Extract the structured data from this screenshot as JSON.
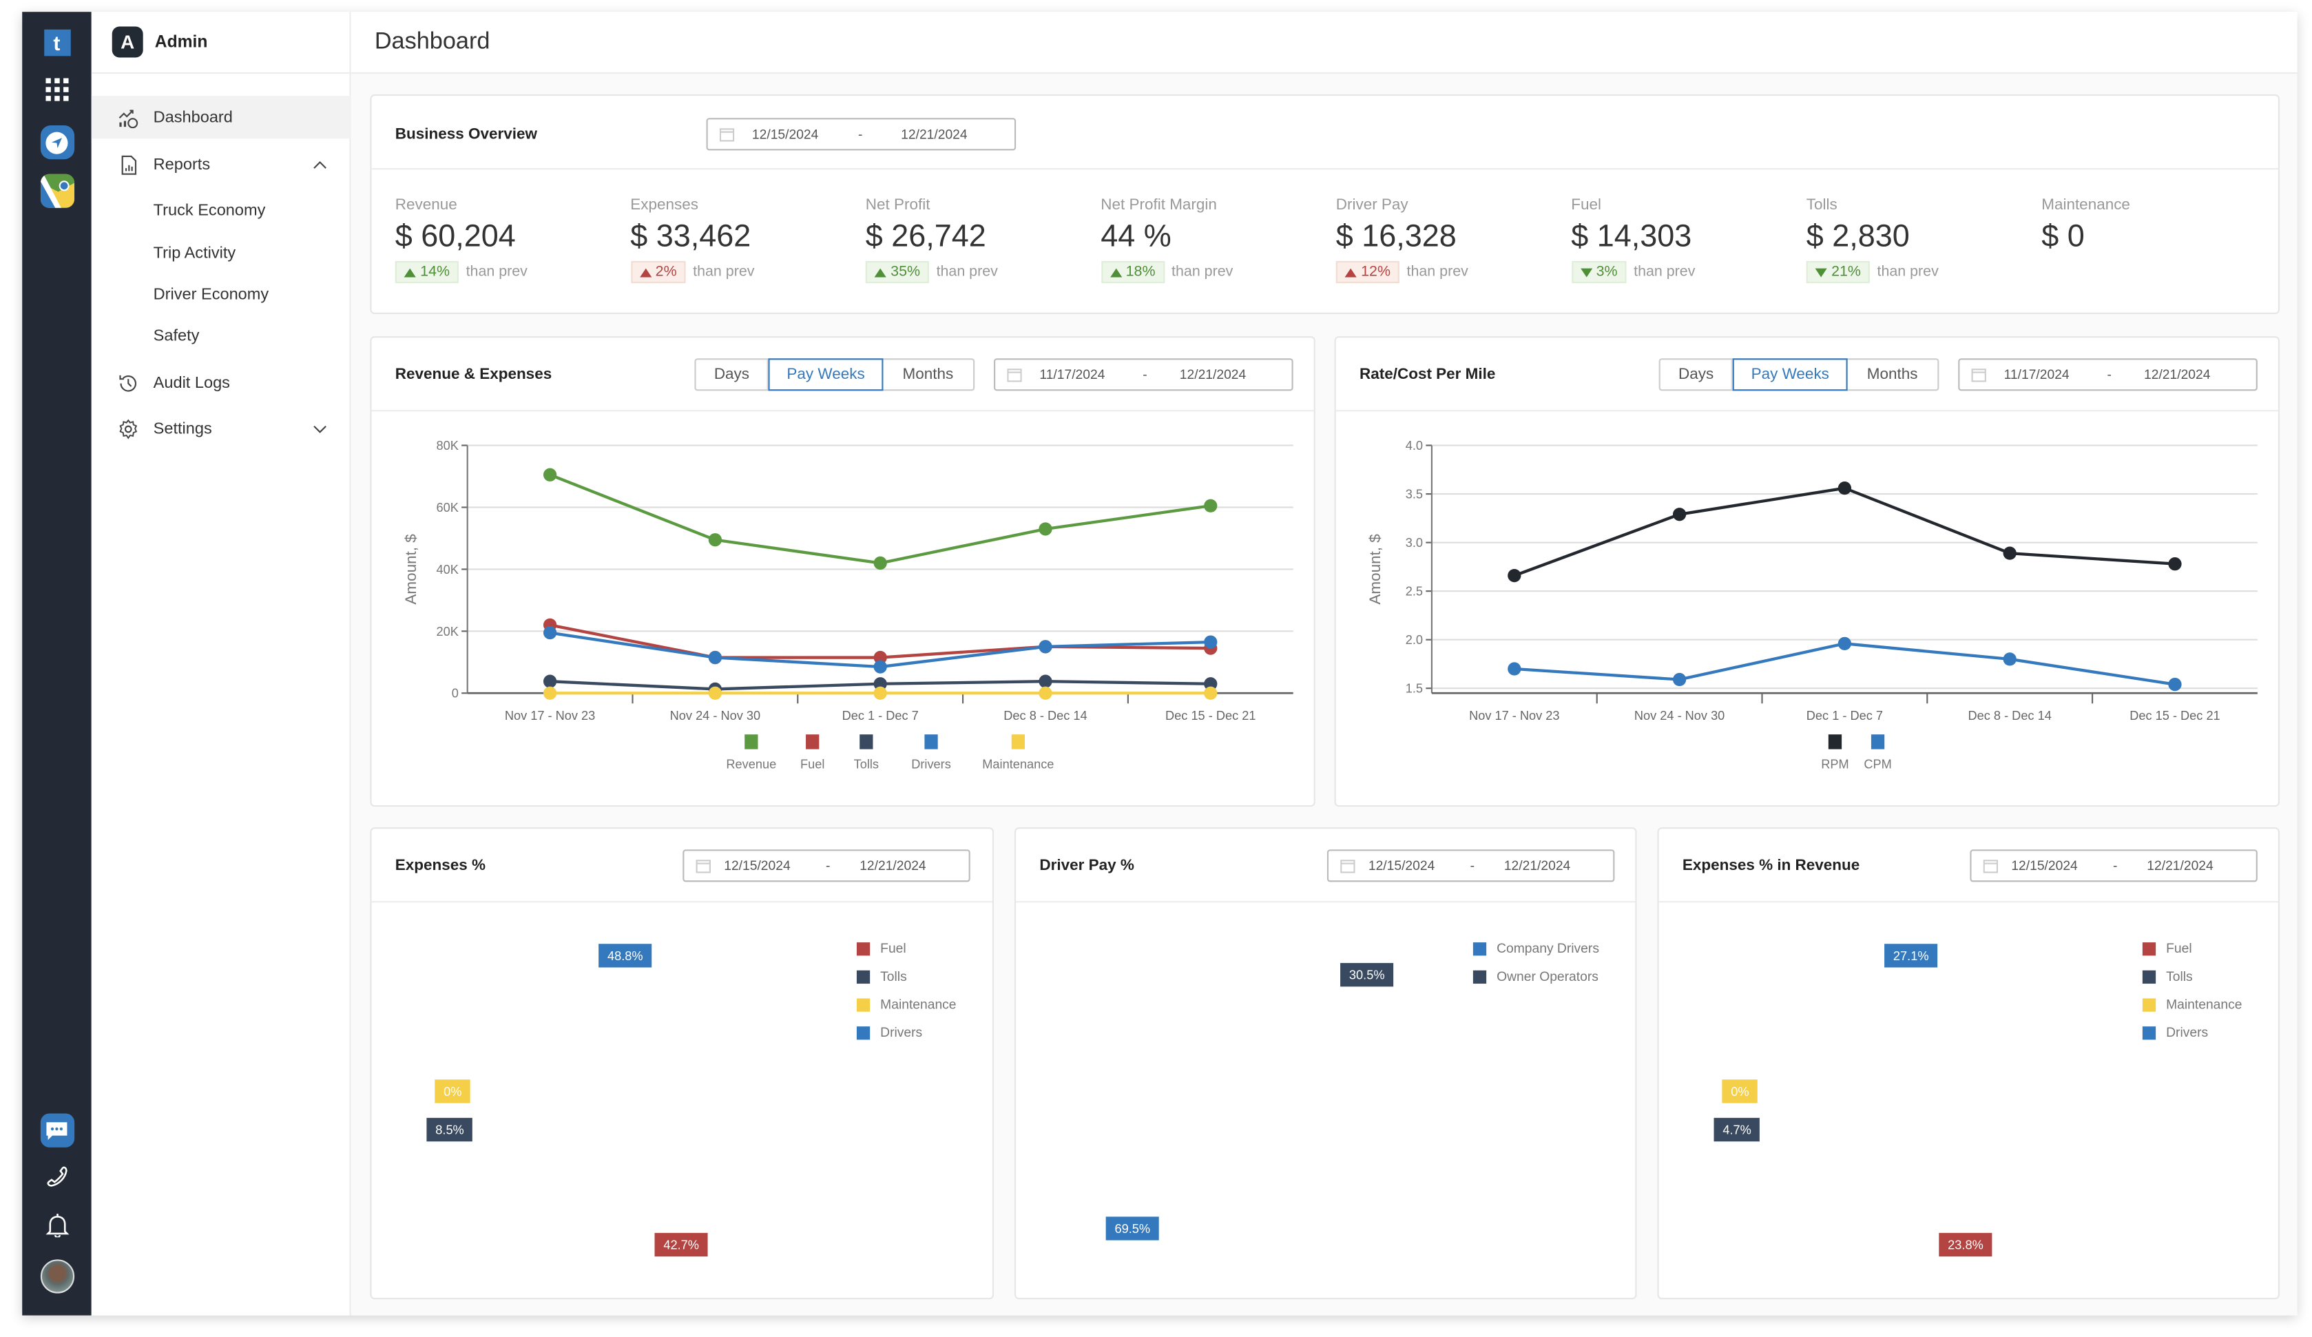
{
  "sidebar": {
    "app_name": "Admin",
    "items": [
      {
        "label": "Dashboard",
        "icon": "chart-dollar-icon",
        "active": true
      },
      {
        "label": "Reports",
        "icon": "report-icon",
        "expanded": true
      },
      {
        "label": "Truck Economy"
      },
      {
        "label": "Trip Activity"
      },
      {
        "label": "Driver Economy"
      },
      {
        "label": "Safety"
      },
      {
        "label": "Audit Logs",
        "icon": "history-icon"
      },
      {
        "label": "Settings",
        "icon": "gear-icon",
        "expanded": false
      }
    ]
  },
  "rail": {
    "icons": [
      "t-logo-icon",
      "apps-grid-icon",
      "navigation-icon",
      "maps-icon",
      "chat-icon",
      "phone-icon",
      "bell-icon",
      "avatar"
    ]
  },
  "header": {
    "title": "Dashboard"
  },
  "overview": {
    "title": "Business Overview",
    "date_from": "12/15/2024",
    "date_sep": "-",
    "date_to": "12/21/2024",
    "than_prev": "than prev",
    "metrics": [
      {
        "label": "Revenue",
        "value": "$ 60,204",
        "change": "14%",
        "direction": "up",
        "status": "good"
      },
      {
        "label": "Expenses",
        "value": "$ 33,462",
        "change": "2%",
        "direction": "up",
        "status": "bad"
      },
      {
        "label": "Net Profit",
        "value": "$ 26,742",
        "change": "35%",
        "direction": "up",
        "status": "good"
      },
      {
        "label": "Net Profit Margin",
        "value": "44 %",
        "change": "18%",
        "direction": "up",
        "status": "good"
      },
      {
        "label": "Driver Pay",
        "value": "$ 16,328",
        "change": "12%",
        "direction": "up",
        "status": "bad"
      },
      {
        "label": "Fuel",
        "value": "$ 14,303",
        "change": "3%",
        "direction": "down",
        "status": "good"
      },
      {
        "label": "Tolls",
        "value": "$ 2,830",
        "change": "21%",
        "direction": "down",
        "status": "good"
      },
      {
        "label": "Maintenance",
        "value": "$ 0"
      }
    ]
  },
  "toggle": {
    "days": "Days",
    "pay_weeks": "Pay Weeks",
    "months": "Months",
    "selected": "Pay Weeks"
  },
  "rev_card": {
    "title": "Revenue & Expenses",
    "date_from": "11/17/2024",
    "date_sep": "-",
    "date_to": "12/21/2024"
  },
  "rate_card": {
    "title": "Rate/Cost Per Mile",
    "date_from": "11/17/2024",
    "date_sep": "-",
    "date_to": "12/21/2024"
  },
  "exp_card": {
    "title": "Expenses %",
    "date_from": "12/15/2024",
    "date_sep": "-",
    "date_to": "12/21/2024"
  },
  "pay_card": {
    "title": "Driver Pay %",
    "date_from": "12/15/2024",
    "date_sep": "-",
    "date_to": "12/21/2024"
  },
  "rev_pct_card": {
    "title": "Expenses % in Revenue",
    "date_from": "12/15/2024",
    "date_sep": "-",
    "date_to": "12/21/2024"
  },
  "chart_data": [
    {
      "type": "line",
      "categories": [
        "Nov 17 - Nov 23",
        "Nov 24 - Nov 30",
        "Dec 1 - Dec 7",
        "Dec 8 - Dec 14",
        "Dec 15 - Dec 21"
      ],
      "ylabel": "Amount, $",
      "ylim": [
        0,
        80000
      ],
      "yticks": [
        0,
        20000,
        40000,
        60000,
        80000
      ],
      "ytick_labels": [
        "0",
        "20K",
        "40K",
        "60K",
        "80K"
      ],
      "grid": true,
      "legend": "bottom",
      "series": [
        {
          "name": "Revenue",
          "color": "#5b9a41",
          "values": [
            70500,
            49500,
            42000,
            53000,
            60500
          ]
        },
        {
          "name": "Fuel",
          "color": "#b34442",
          "values": [
            22000,
            11500,
            11500,
            15000,
            14500
          ]
        },
        {
          "name": "Tolls",
          "color": "#384960",
          "values": [
            3800,
            1300,
            3000,
            3800,
            3000
          ]
        },
        {
          "name": "Drivers",
          "color": "#3479bd",
          "values": [
            19500,
            11500,
            8500,
            15000,
            16500
          ]
        },
        {
          "name": "Maintenance",
          "color": "#f5cf47",
          "values": [
            0,
            0,
            0,
            0,
            0
          ]
        }
      ]
    },
    {
      "type": "line",
      "categories": [
        "Nov 17 - Nov 23",
        "Nov 24 - Nov 30",
        "Dec 1 - Dec 7",
        "Dec 8 - Dec 14",
        "Dec 15 - Dec 21"
      ],
      "ylabel": "Amount, $",
      "ylim": [
        1.45,
        4.0
      ],
      "yticks": [
        1.5,
        2.0,
        2.5,
        3.0,
        3.5,
        4.0
      ],
      "ytick_labels": [
        "1.5",
        "2.0",
        "2.5",
        "3.0",
        "3.5",
        "4.0"
      ],
      "grid": true,
      "legend": "bottom",
      "series": [
        {
          "name": "RPM",
          "color": "#23272e",
          "values": [
            2.66,
            3.29,
            3.56,
            2.89,
            2.78
          ]
        },
        {
          "name": "CPM",
          "color": "#3479bd",
          "values": [
            1.7,
            1.59,
            1.96,
            1.8,
            1.54
          ]
        }
      ]
    },
    {
      "type": "pie",
      "donut": true,
      "legend": "right",
      "slices": [
        {
          "name": "Fuel",
          "color": "#b34442",
          "value": 42.7,
          "label": "42.7%"
        },
        {
          "name": "Tolls",
          "color": "#384960",
          "value": 8.5,
          "label": "8.5%"
        },
        {
          "name": "Maintenance",
          "color": "#f5cf47",
          "value": 0,
          "label": "0%"
        },
        {
          "name": "Drivers",
          "color": "#3479bd",
          "value": 48.8,
          "label": "48.8%"
        }
      ]
    },
    {
      "type": "pie",
      "donut": false,
      "legend": "right",
      "slices": [
        {
          "name": "Company Drivers",
          "color": "#3479bd",
          "value": 69.5,
          "label": "69.5%"
        },
        {
          "name": "Owner Operators",
          "color": "#384960",
          "value": 30.5,
          "label": "30.5%"
        }
      ]
    },
    {
      "type": "pie",
      "donut": true,
      "legend": "right",
      "slices": [
        {
          "name": "Fuel",
          "color": "#b34442",
          "value": 23.8,
          "label": "23.8%"
        },
        {
          "name": "Tolls",
          "color": "#384960",
          "value": 4.7,
          "label": "4.7%"
        },
        {
          "name": "Maintenance",
          "color": "#f5cf47",
          "value": 0,
          "label": "0%"
        },
        {
          "name": "Drivers",
          "color": "#3479bd",
          "value": 27.1,
          "label": "27.1%"
        }
      ]
    }
  ]
}
